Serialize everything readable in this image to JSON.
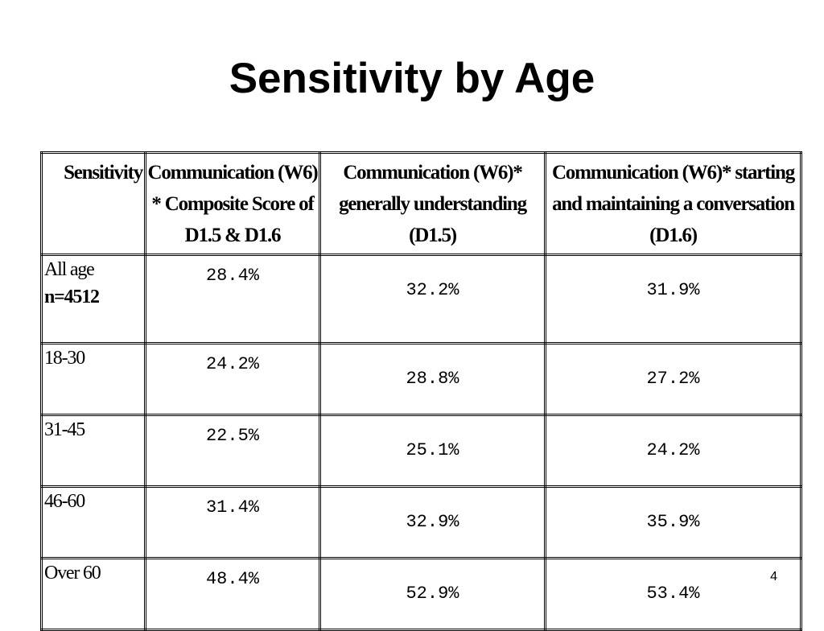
{
  "title": "Sensitivity by Age",
  "table": {
    "headers": [
      "Sensitivity",
      "Communication (W6) * Composite Score of D1.5 & D1.6",
      "Communication (W6)* generally understanding (D1.5)",
      "Communication (W6)* starting and maintaining a conversation (D1.6)"
    ],
    "rows": [
      {
        "label": "All age",
        "sublabel": "n=4512",
        "values": [
          "28.4%",
          "32.2%",
          "31.9%"
        ]
      },
      {
        "label": "18-30",
        "values": [
          "24.2%",
          "28.8%",
          "27.2%"
        ]
      },
      {
        "label": "31-45",
        "values": [
          "22.5%",
          "25.1%",
          "24.2%"
        ]
      },
      {
        "label": "46-60",
        "values": [
          "31.4%",
          "32.9%",
          "35.9%"
        ]
      },
      {
        "label": "Over 60",
        "values": [
          "48.4%",
          "52.9%",
          "53.4%"
        ]
      }
    ]
  },
  "page_number": "4"
}
